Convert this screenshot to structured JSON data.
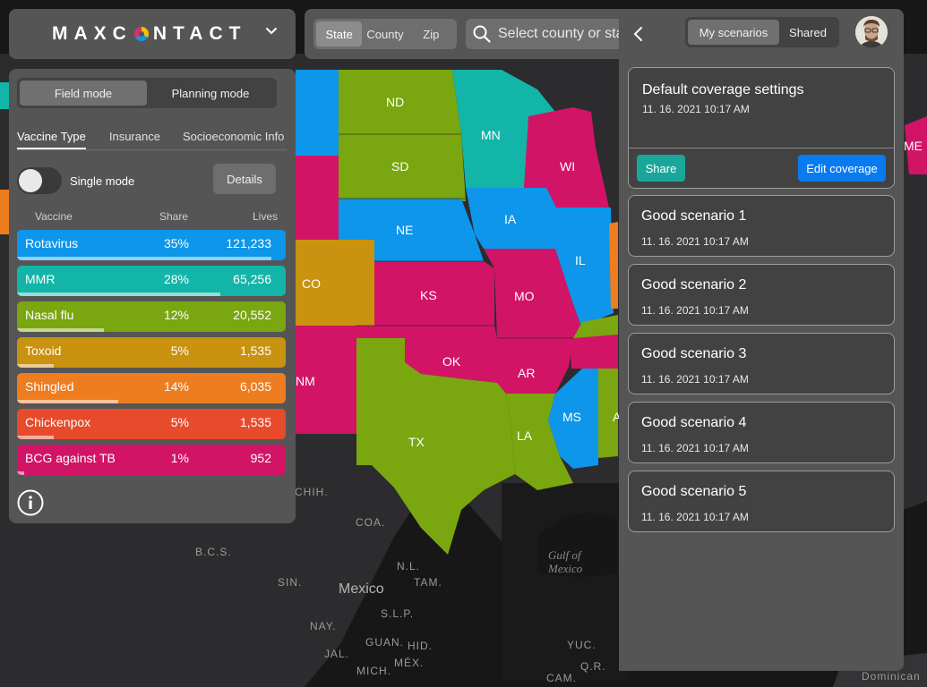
{
  "logo": {
    "text_before": "MAXC",
    "text_after": "NTACT"
  },
  "search_bar": {
    "region_tabs": [
      {
        "label": "State",
        "active": true
      },
      {
        "label": "County",
        "active": false
      },
      {
        "label": "Zip",
        "active": false
      }
    ],
    "placeholder": "Select county or state"
  },
  "left_panel": {
    "modes": [
      {
        "label": "Field mode",
        "active": true
      },
      {
        "label": "Planning mode",
        "active": false
      }
    ],
    "tabs": [
      {
        "label": "Vaccine Type",
        "active": true
      },
      {
        "label": "Insurance",
        "active": false
      },
      {
        "label": "Socioeconomic Info",
        "active": false
      }
    ],
    "single_mode_label": "Single mode",
    "single_mode_on": false,
    "details_label": "Details",
    "columns": {
      "vaccine": "Vaccine",
      "share": "Share",
      "lives": "Lives"
    },
    "vaccines": [
      {
        "name": "Rotavirus",
        "share": "35%",
        "share_value": 0.35,
        "lives": "121,233",
        "color": "#0d96ea"
      },
      {
        "name": "MMR",
        "share": "28%",
        "share_value": 0.28,
        "lives": "65,256",
        "color": "#13b5a8"
      },
      {
        "name": "Nasal flu",
        "share": "12%",
        "share_value": 0.12,
        "lives": "20,552",
        "color": "#7aa60f"
      },
      {
        "name": "Toxoid",
        "share": "5%",
        "share_value": 0.05,
        "lives": "1,535",
        "color": "#c9920f"
      },
      {
        "name": "Shingled",
        "share": "14%",
        "share_value": 0.14,
        "lives": "6,035",
        "color": "#ee7d1f"
      },
      {
        "name": "Chickenpox",
        "share": "5%",
        "share_value": 0.05,
        "lives": "1,535",
        "color": "#e74b2b"
      },
      {
        "name": "BCG against TB",
        "share": "1%",
        "share_value": 0.01,
        "lives": "952",
        "color": "#d21466"
      }
    ]
  },
  "right_panel": {
    "tabs": [
      {
        "label": "My scenarios",
        "active": true
      },
      {
        "label": "Shared",
        "active": false
      }
    ],
    "default_card": {
      "title": "Default coverage settings",
      "date": "11. 16. 2021 10:17 AM",
      "share_label": "Share",
      "edit_label": "Edit coverage"
    },
    "scenarios": [
      {
        "title": "Good scenario 1",
        "date": "11. 16. 2021 10:17 AM"
      },
      {
        "title": "Good scenario 2",
        "date": "11. 16. 2021 10:17 AM"
      },
      {
        "title": "Good scenario 3",
        "date": "11. 16. 2021 10:17 AM"
      },
      {
        "title": "Good scenario 4",
        "date": "11. 16. 2021 10:17 AM"
      },
      {
        "title": "Good scenario 5",
        "date": "11. 16. 2021 10:17 AM"
      }
    ]
  },
  "map": {
    "states": [
      "ND",
      "MN",
      "SD",
      "WI",
      "NE",
      "IA",
      "IL",
      "CO",
      "KS",
      "MO",
      "OK",
      "AR",
      "NM",
      "TX",
      "LA",
      "MS",
      "A",
      "ME"
    ],
    "places": [
      "Mexico",
      "Gulf of Mexico",
      "CHIH.",
      "COA.",
      "B.C.S.",
      "SIN.",
      "N.L.",
      "TAM.",
      "S.L.P.",
      "NAY.",
      "JAL.",
      "GUAN.",
      "HID.",
      "MÉX.",
      "MICH.",
      "YUC.",
      "Q.R.",
      "CAM.",
      "Dominican Republic"
    ],
    "colors": {
      "blue": "#0d96ea",
      "teal": "#13b5a8",
      "green": "#7aa60f",
      "magenta": "#d21466",
      "gold": "#c9920f",
      "orange": "#ee7d1f",
      "land": "#2e2e30",
      "water": "#151516"
    }
  }
}
